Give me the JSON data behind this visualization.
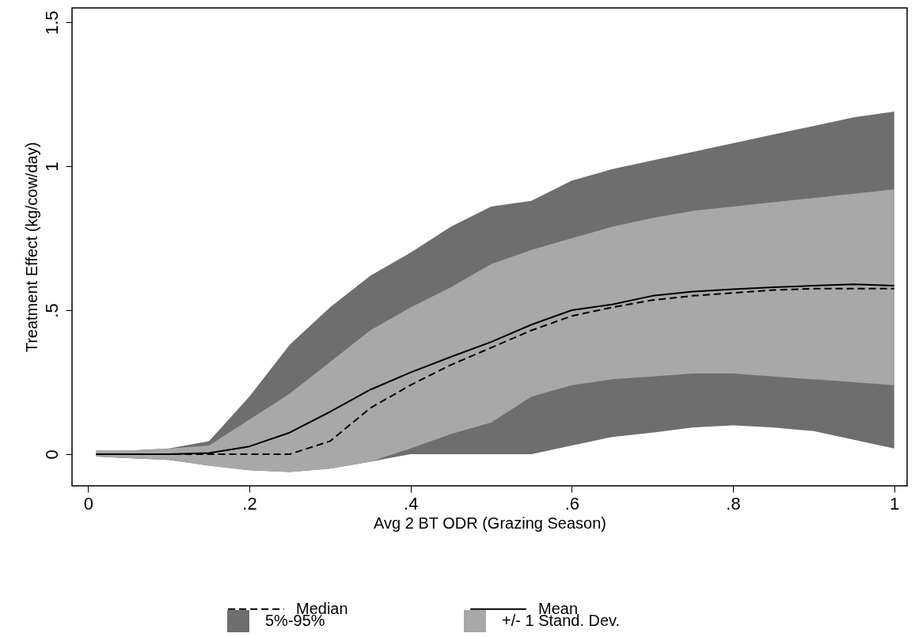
{
  "chart_data": {
    "type": "line",
    "xlabel": "Avg 2 BT ODR (Grazing Season)",
    "ylabel": "Treatment Effect (kg/cow/day)",
    "x": [
      0.01,
      0.05,
      0.1,
      0.15,
      0.2,
      0.25,
      0.3,
      0.35,
      0.4,
      0.45,
      0.5,
      0.55,
      0.6,
      0.65,
      0.7,
      0.75,
      0.8,
      0.85,
      0.9,
      0.95,
      1.0
    ],
    "series": [
      {
        "name": "5%-95%",
        "color": "#6e6e6e",
        "values": [
          null,
          null,
          null,
          null,
          null,
          null,
          null,
          null,
          null,
          null,
          null,
          null,
          null,
          null,
          null,
          null,
          null,
          null,
          null,
          null,
          null
        ],
        "upper": [
          0.012,
          0.012,
          0.02,
          0.045,
          0.2,
          0.38,
          0.51,
          0.62,
          0.7,
          0.79,
          0.86,
          0.88,
          0.95,
          0.99,
          1.02,
          1.05,
          1.08,
          1.11,
          1.14,
          1.17,
          1.19
        ],
        "lower": [
          -0.008,
          -0.014,
          -0.02,
          -0.04,
          -0.056,
          -0.062,
          -0.05,
          -0.026,
          0,
          0,
          0,
          0,
          0.03,
          0.06,
          0.075,
          0.093,
          0.1,
          0.093,
          0.08,
          0.05,
          0.02
        ]
      },
      {
        "name": "+/- 1 Stand. Dev.",
        "color": "#a8a8a8",
        "values": [
          null,
          null,
          null,
          null,
          null,
          null,
          null,
          null,
          null,
          null,
          null,
          null,
          null,
          null,
          null,
          null,
          null,
          null,
          null,
          null,
          null
        ],
        "upper": [
          0.012,
          0.012,
          0.02,
          0.03,
          0.12,
          0.21,
          0.32,
          0.43,
          0.51,
          0.58,
          0.66,
          0.71,
          0.75,
          0.79,
          0.82,
          0.845,
          0.86,
          0.875,
          0.89,
          0.905,
          0.92
        ],
        "lower": [
          -0.008,
          -0.014,
          -0.02,
          -0.04,
          -0.056,
          -0.062,
          -0.05,
          -0.026,
          0.02,
          0.07,
          0.11,
          0.2,
          0.24,
          0.26,
          0.27,
          0.28,
          0.28,
          0.27,
          0.26,
          0.25,
          0.24
        ]
      },
      {
        "name": "Median",
        "color": "#000000",
        "line_style": "dashed",
        "values": [
          0,
          0,
          0,
          0,
          0,
          0,
          0.045,
          0.16,
          0.24,
          0.31,
          0.37,
          0.43,
          0.48,
          0.51,
          0.535,
          0.55,
          0.56,
          0.57,
          0.575,
          0.575,
          0.575
        ]
      },
      {
        "name": "Mean",
        "color": "#000000",
        "line_style": "solid",
        "values": [
          0,
          0,
          0,
          0.004,
          0.027,
          0.075,
          0.147,
          0.224,
          0.284,
          0.338,
          0.39,
          0.45,
          0.5,
          0.52,
          0.55,
          0.565,
          0.573,
          0.58,
          0.585,
          0.59,
          0.585
        ]
      }
    ],
    "xlim": [
      -0.02,
      1.016
    ],
    "xticks": [
      0,
      {
        "value": 0.2,
        "label": ".2"
      },
      {
        "value": 0.4,
        "label": ".4"
      },
      {
        "value": 0.6,
        "label": ".6"
      },
      {
        "value": 0.8,
        "label": ".8"
      },
      1
    ],
    "ylim": [
      -0.11,
      1.55
    ],
    "yticks": [
      0,
      {
        "value": 0.5,
        "label": ".5"
      },
      1,
      1.5
    ],
    "legend": "bottom"
  }
}
